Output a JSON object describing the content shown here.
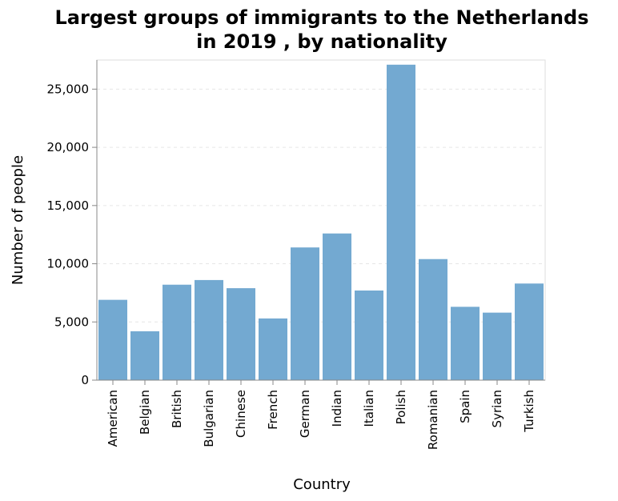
{
  "chart_data": {
    "type": "bar",
    "title": [
      "Largest groups of immigrants to the Netherlands",
      "in 2019 , by nationality"
    ],
    "xlabel": "Country",
    "ylabel": "Number of people",
    "ylim": [
      0,
      27500
    ],
    "yticks": [
      0,
      5000,
      10000,
      15000,
      20000,
      25000
    ],
    "ytick_labels": [
      "0",
      "5,000",
      "10,000",
      "15,000",
      "20,000",
      "25,000"
    ],
    "grid": true,
    "categories": [
      "American",
      "Belgian",
      "British",
      "Bulgarian",
      "Chinese",
      "French",
      "German",
      "Indian",
      "Italian",
      "Polish",
      "Romanian",
      "Spain",
      "Syrian",
      "Turkish"
    ],
    "values": [
      6900,
      4200,
      8200,
      8600,
      7900,
      5300,
      11400,
      12600,
      7700,
      27100,
      10400,
      6300,
      5800,
      8300
    ],
    "bar_color": "#73a9d1"
  }
}
